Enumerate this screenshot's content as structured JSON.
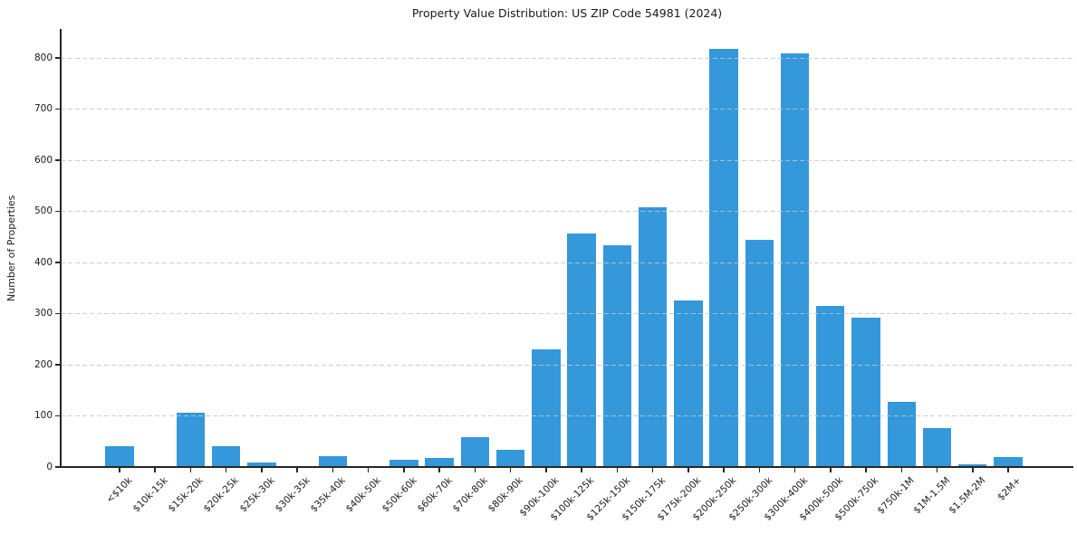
{
  "chart_data": {
    "type": "bar",
    "title": "Property Value Distribution: US ZIP Code 54981 (2024)",
    "xlabel": "",
    "ylabel": "Number of Properties",
    "categories": [
      "<$10k",
      "$10k-15k",
      "$15k-20k",
      "$20k-25k",
      "$25k-30k",
      "$30k-35k",
      "$35k-40k",
      "$40k-50k",
      "$50k-60k",
      "$60k-70k",
      "$70k-80k",
      "$80k-90k",
      "$90k-100k",
      "$100k-125k",
      "$125k-150k",
      "$150k-175k",
      "$175k-200k",
      "$200k-250k",
      "$250k-300k",
      "$300k-400k",
      "$400k-500k",
      "$500k-750k",
      "$750k-1M",
      "$1M-1.5M",
      "$1.5M-2M",
      "$2M+"
    ],
    "values": [
      40,
      2,
      107,
      40,
      8,
      0,
      21,
      0,
      15,
      17,
      58,
      33,
      230,
      457,
      433,
      508,
      325,
      818,
      444,
      810,
      315,
      293,
      128,
      77,
      6,
      19
    ],
    "yticks": [
      0,
      100,
      200,
      300,
      400,
      500,
      600,
      700,
      800
    ],
    "ylim": [
      0,
      857
    ],
    "legend": "none",
    "grid": "horizontal-dashed",
    "colors": {
      "bar": "#3498db",
      "grid": "#c6c6c6",
      "axis": "#262626",
      "text": "#1a1a1a",
      "background": "#ffffff"
    }
  }
}
